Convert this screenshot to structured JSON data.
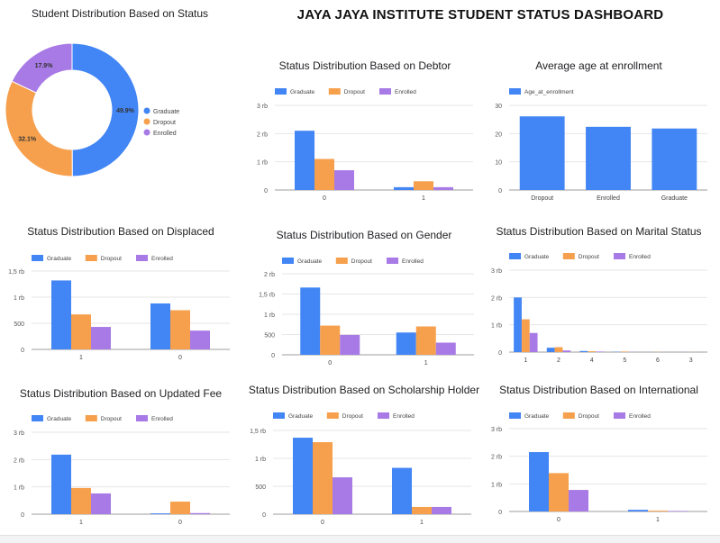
{
  "dashboard_title": "JAYA JAYA INSTITUTE STUDENT STATUS DASHBOARD",
  "colors": {
    "Graduate": "#4285f4",
    "Dropout": "#f6a04d",
    "Enrolled": "#a87ae6",
    "Age_at_enrollment": "#4285f4"
  },
  "chart_data": [
    {
      "id": "status",
      "type": "pie",
      "title": "Student Distribution Based on Status",
      "labels": [
        "Graduate",
        "Dropout",
        "Enrolled"
      ],
      "values": [
        49.9,
        32.1,
        17.9
      ],
      "data_labels": [
        "49.9%",
        "32.1%",
        "17.9%"
      ],
      "legend": "right"
    },
    {
      "id": "debtor",
      "type": "bar",
      "title": "Status Distribution Based on Debtor",
      "categories": [
        "0",
        "1"
      ],
      "series": [
        {
          "name": "Graduate",
          "values": [
            2100,
            100
          ]
        },
        {
          "name": "Dropout",
          "values": [
            1100,
            310
          ]
        },
        {
          "name": "Enrolled",
          "values": [
            700,
            100
          ]
        }
      ],
      "yticks": [
        "0",
        "1 rb",
        "2 rb",
        "3 rb"
      ],
      "ylim": [
        0,
        3000
      ],
      "legend": "top-left"
    },
    {
      "id": "age",
      "type": "bar",
      "title": "Average age at enrollment",
      "categories": [
        "Dropout",
        "Enrolled",
        "Graduate"
      ],
      "series": [
        {
          "name": "Age_at_enrollment",
          "values": [
            26.1,
            22.4,
            21.8
          ]
        }
      ],
      "yticks": [
        "0",
        "10",
        "20",
        "30"
      ],
      "ylim": [
        0,
        30
      ],
      "legend": "top-left"
    },
    {
      "id": "displaced",
      "type": "bar",
      "title": "Status Distribution Based on Displaced",
      "categories": [
        "1",
        "0"
      ],
      "series": [
        {
          "name": "Graduate",
          "values": [
            1320,
            880
          ]
        },
        {
          "name": "Dropout",
          "values": [
            670,
            750
          ]
        },
        {
          "name": "Enrolled",
          "values": [
            430,
            360
          ]
        }
      ],
      "yticks": [
        "0",
        "500",
        "1 rb",
        "1,5 rb"
      ],
      "ylim": [
        0,
        1500
      ],
      "legend": "top-left"
    },
    {
      "id": "gender",
      "type": "bar",
      "title": "Status Distribution Based on Gender",
      "categories": [
        "0",
        "1"
      ],
      "series": [
        {
          "name": "Graduate",
          "values": [
            1660,
            550
          ]
        },
        {
          "name": "Dropout",
          "values": [
            720,
            700
          ]
        },
        {
          "name": "Enrolled",
          "values": [
            490,
            300
          ]
        }
      ],
      "yticks": [
        "0",
        "500",
        "1 rb",
        "1,5 rb",
        "2 rb"
      ],
      "ylim": [
        0,
        2000
      ],
      "legend": "top-left"
    },
    {
      "id": "marital",
      "type": "bar",
      "title": "Status Distribution Based on Marital Status",
      "categories": [
        "1",
        "2",
        "4",
        "5",
        "6",
        "3"
      ],
      "series": [
        {
          "name": "Graduate",
          "values": [
            2000,
            160,
            40,
            10,
            2,
            2
          ]
        },
        {
          "name": "Dropout",
          "values": [
            1200,
            180,
            30,
            20,
            5,
            2
          ]
        },
        {
          "name": "Enrolled",
          "values": [
            700,
            60,
            20,
            5,
            2,
            1
          ]
        }
      ],
      "yticks": [
        "0",
        "1 rb",
        "2 rb",
        "3 rb"
      ],
      "ylim": [
        0,
        3000
      ],
      "legend": "top-left"
    },
    {
      "id": "fee",
      "type": "bar",
      "title": "Status Distribution Based on Updated Fee",
      "categories": [
        "1",
        "0"
      ],
      "series": [
        {
          "name": "Graduate",
          "values": [
            2180,
            30
          ]
        },
        {
          "name": "Dropout",
          "values": [
            960,
            460
          ]
        },
        {
          "name": "Enrolled",
          "values": [
            760,
            40
          ]
        }
      ],
      "yticks": [
        "0",
        "1 rb",
        "2 rb",
        "3 rb"
      ],
      "ylim": [
        0,
        3000
      ],
      "legend": "top-left"
    },
    {
      "id": "scholar",
      "type": "bar",
      "title": "Status Distribution Based on Scholarship Holder",
      "categories": [
        "0",
        "1"
      ],
      "series": [
        {
          "name": "Graduate",
          "values": [
            1370,
            830
          ]
        },
        {
          "name": "Dropout",
          "values": [
            1290,
            130
          ]
        },
        {
          "name": "Enrolled",
          "values": [
            660,
            130
          ]
        }
      ],
      "yticks": [
        "0",
        "500",
        "1 rb",
        "1,5 rb"
      ],
      "ylim": [
        0,
        1500
      ],
      "legend": "top-left"
    },
    {
      "id": "intl",
      "type": "bar",
      "title": "Status Distribution Based on International",
      "categories": [
        "0",
        "1"
      ],
      "series": [
        {
          "name": "Graduate",
          "values": [
            2150,
            60
          ]
        },
        {
          "name": "Dropout",
          "values": [
            1390,
            30
          ]
        },
        {
          "name": "Enrolled",
          "values": [
            780,
            20
          ]
        }
      ],
      "yticks": [
        "0",
        "1 rb",
        "2 rb",
        "3 rb"
      ],
      "ylim": [
        0,
        3000
      ],
      "legend": "top-left"
    }
  ]
}
